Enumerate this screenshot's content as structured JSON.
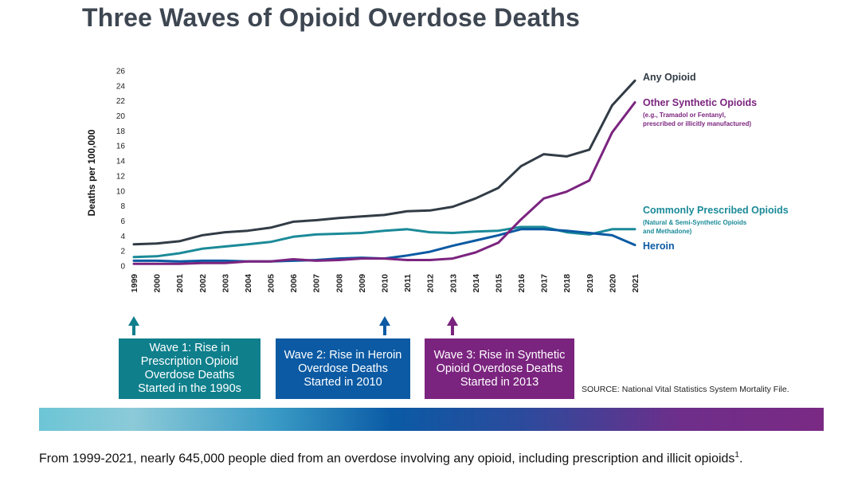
{
  "title": "Three Waves of Opioid Overdose Deaths",
  "chart_data": {
    "type": "line",
    "x": [
      "1999",
      "2000",
      "2001",
      "2002",
      "2003",
      "2004",
      "2005",
      "2006",
      "2007",
      "2008",
      "2009",
      "2010",
      "2011",
      "2012",
      "2013",
      "2014",
      "2015",
      "2016",
      "2017",
      "2018",
      "2019",
      "2020",
      "2021"
    ],
    "ylabel": "Deaths per 100,000",
    "ylim": [
      0,
      26
    ],
    "yticks": [
      0,
      2,
      4,
      6,
      8,
      10,
      12,
      14,
      16,
      18,
      20,
      22,
      24,
      26
    ],
    "grid": false,
    "series": [
      {
        "name": "Any Opioid",
        "subtitle": "",
        "color": "#323c46",
        "values": [
          2.9,
          3.0,
          3.3,
          4.1,
          4.5,
          4.7,
          5.1,
          5.9,
          6.1,
          6.4,
          6.6,
          6.8,
          7.3,
          7.4,
          7.9,
          9.0,
          10.4,
          13.3,
          14.9,
          14.6,
          15.5,
          21.4,
          24.7
        ]
      },
      {
        "name": "Other Synthetic Opioids",
        "subtitle": [
          "(e.g., Tramadol or Fentanyl,",
          "prescribed or illicitly manufactured)"
        ],
        "color": "#7b247f",
        "values": [
          0.3,
          0.3,
          0.3,
          0.4,
          0.4,
          0.6,
          0.6,
          0.9,
          0.7,
          0.8,
          1.0,
          1.0,
          0.8,
          0.8,
          1.0,
          1.8,
          3.1,
          6.2,
          9.0,
          9.9,
          11.4,
          17.8,
          21.8
        ]
      },
      {
        "name": "Commonly Prescribed Opioids",
        "subtitle": [
          "(Natural & Semi-Synthetic Opioids",
          "and Methadone)"
        ],
        "color": "#1b8a98",
        "values": [
          1.2,
          1.3,
          1.7,
          2.3,
          2.6,
          2.9,
          3.2,
          3.9,
          4.2,
          4.3,
          4.4,
          4.7,
          4.9,
          4.5,
          4.4,
          4.6,
          4.7,
          5.2,
          5.2,
          4.5,
          4.2,
          4.9,
          4.9
        ]
      },
      {
        "name": "Heroin",
        "subtitle": "",
        "color": "#0b5aa3",
        "values": [
          0.7,
          0.7,
          0.6,
          0.7,
          0.7,
          0.6,
          0.6,
          0.7,
          0.8,
          1.0,
          1.1,
          1.0,
          1.4,
          1.9,
          2.7,
          3.4,
          4.1,
          4.9,
          4.9,
          4.7,
          4.4,
          4.1,
          2.8
        ]
      }
    ]
  },
  "waves": [
    {
      "lines": [
        "Wave 1: Rise in",
        "Prescription Opioid",
        "Overdose Deaths",
        "Started in the 1990s"
      ],
      "year": "1999",
      "color": "#0f7f8c"
    },
    {
      "lines": [
        "Wave 2: Rise in Heroin",
        "Overdose Deaths",
        "Started in 2010"
      ],
      "year": "2010",
      "color": "#0b5aa3"
    },
    {
      "lines": [
        "Wave 3: Rise in Synthetic",
        "Opioid Overdose Deaths",
        "Started in 2013"
      ],
      "year": "2013",
      "color": "#7b247f"
    }
  ],
  "source": "SOURCE: National Vital Statistics System Mortality File.",
  "caption": {
    "text": "From 1999-2021, nearly 645,000 people died from an overdose involving any opioid, including prescription and illicit opioids",
    "footnote": "1",
    "end": "."
  }
}
